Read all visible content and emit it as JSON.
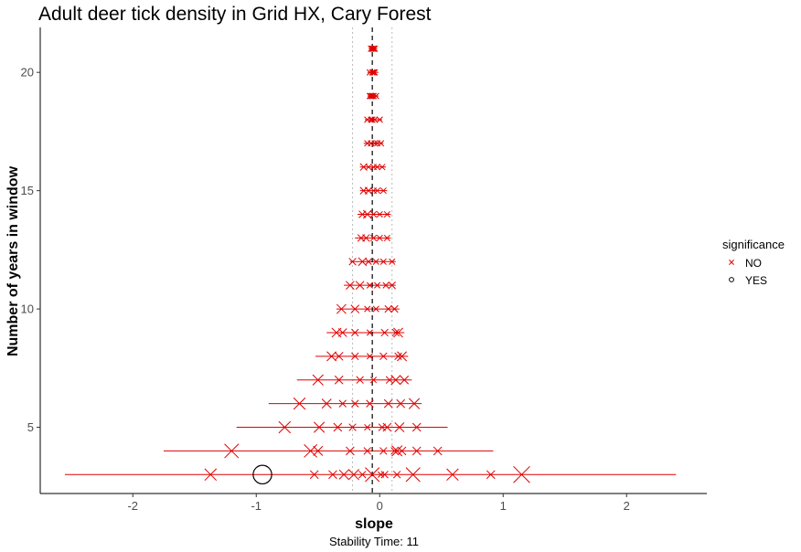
{
  "chart_data": {
    "type": "scatter",
    "title": "Adult deer tick density in Grid HX, Cary Forest",
    "xlabel": "slope",
    "ylabel": "Number of years in window",
    "caption": "Stability Time: 11",
    "xlim": [
      -2.75,
      2.65
    ],
    "ylim": [
      2.2,
      21.9
    ],
    "x_ticks": [
      -2,
      -1,
      0,
      1,
      2
    ],
    "x_tick_labels": [
      "-2",
      "-1",
      "0",
      "1",
      "2"
    ],
    "y_ticks": [
      5,
      10,
      15,
      20
    ],
    "y_tick_labels": [
      "5",
      "10",
      "15",
      "20"
    ],
    "reference_line_x": -0.06,
    "band_lines_x": [
      -0.22,
      0.1
    ],
    "grid": false,
    "colors": {
      "NO": "#e00000",
      "YES": "#000000",
      "ref_line": "#000000",
      "band": "#bbbbbb"
    },
    "legend": {
      "title": "significance",
      "position": "right",
      "entries": [
        {
          "label": "NO",
          "marker": "x",
          "color": "#e00000"
        },
        {
          "label": "YES",
          "marker": "circle",
          "color": "#000000"
        }
      ]
    },
    "rows": [
      {
        "n": 21,
        "min": -0.09,
        "max": -0.02,
        "points": [
          [
            -0.07,
            1
          ],
          [
            -0.05,
            1
          ],
          [
            -0.04,
            1
          ],
          [
            -0.06,
            1
          ]
        ]
      },
      {
        "n": 20,
        "min": -0.1,
        "max": -0.01,
        "points": [
          [
            -0.08,
            1
          ],
          [
            -0.06,
            1
          ],
          [
            -0.04,
            1
          ],
          [
            -0.05,
            1
          ]
        ]
      },
      {
        "n": 19,
        "min": -0.1,
        "max": -0.01,
        "points": [
          [
            -0.08,
            1
          ],
          [
            -0.06,
            1
          ],
          [
            -0.03,
            1
          ],
          [
            -0.05,
            1
          ],
          [
            -0.07,
            1
          ]
        ]
      },
      {
        "n": 18,
        "min": -0.12,
        "max": 0.02,
        "points": [
          [
            -0.1,
            1
          ],
          [
            -0.07,
            1
          ],
          [
            -0.04,
            1
          ],
          [
            -0.06,
            1
          ],
          [
            0,
            1
          ]
        ]
      },
      {
        "n": 17,
        "min": -0.13,
        "max": 0.03,
        "points": [
          [
            -0.1,
            1
          ],
          [
            -0.07,
            1
          ],
          [
            -0.04,
            1
          ],
          [
            -0.02,
            1
          ],
          [
            0.01,
            1
          ]
        ]
      },
      {
        "n": 16,
        "min": -0.16,
        "max": 0.05,
        "points": [
          [
            -0.13,
            1.2
          ],
          [
            -0.09,
            1
          ],
          [
            -0.05,
            1
          ],
          [
            -0.02,
            1
          ],
          [
            0.02,
            1
          ]
        ]
      },
      {
        "n": 15,
        "min": -0.16,
        "max": 0.06,
        "points": [
          [
            -0.13,
            1.2
          ],
          [
            -0.09,
            1.2
          ],
          [
            -0.05,
            1
          ],
          [
            -0.02,
            1
          ],
          [
            0.03,
            1
          ]
        ]
      },
      {
        "n": 14,
        "min": -0.18,
        "max": 0.09,
        "points": [
          [
            -0.14,
            1.2
          ],
          [
            -0.1,
            1.4
          ],
          [
            -0.05,
            1
          ],
          [
            0,
            1
          ],
          [
            0.06,
            1
          ]
        ]
      },
      {
        "n": 13,
        "min": -0.2,
        "max": 0.09,
        "points": [
          [
            -0.15,
            1.2
          ],
          [
            -0.11,
            1.2
          ],
          [
            -0.05,
            1
          ],
          [
            0,
            1
          ],
          [
            0.06,
            1
          ]
        ]
      },
      {
        "n": 12,
        "min": -0.24,
        "max": 0.13,
        "points": [
          [
            -0.22,
            1.2
          ],
          [
            -0.14,
            1.4
          ],
          [
            -0.09,
            1
          ],
          [
            -0.03,
            1
          ],
          [
            0.03,
            1
          ],
          [
            0.1,
            1
          ]
        ]
      },
      {
        "n": 11,
        "min": -0.29,
        "max": 0.13,
        "points": [
          [
            -0.24,
            1.4
          ],
          [
            -0.16,
            1.4
          ],
          [
            -0.08,
            1
          ],
          [
            -0.02,
            1
          ],
          [
            0.05,
            1
          ],
          [
            0.1,
            1.2
          ]
        ]
      },
      {
        "n": 10,
        "min": -0.35,
        "max": 0.16,
        "points": [
          [
            -0.31,
            1.6
          ],
          [
            -0.2,
            1.4
          ],
          [
            -0.1,
            1
          ],
          [
            -0.03,
            1
          ],
          [
            0.07,
            1.2
          ],
          [
            0.12,
            1.2
          ]
        ]
      },
      {
        "n": 9,
        "min": -0.43,
        "max": 0.2,
        "points": [
          [
            -0.35,
            1.6
          ],
          [
            -0.3,
            1.4
          ],
          [
            -0.2,
            1.2
          ],
          [
            -0.08,
            1
          ],
          [
            0.04,
            1.2
          ],
          [
            0.13,
            1.2
          ],
          [
            0.15,
            1.6
          ]
        ]
      },
      {
        "n": 8,
        "min": -0.52,
        "max": 0.23,
        "points": [
          [
            -0.39,
            1.6
          ],
          [
            -0.33,
            1.4
          ],
          [
            -0.2,
            1.2
          ],
          [
            -0.08,
            1
          ],
          [
            0.03,
            1.2
          ],
          [
            0.15,
            1.2
          ],
          [
            0.18,
            1.6
          ]
        ]
      },
      {
        "n": 7,
        "min": -0.67,
        "max": 0.26,
        "points": [
          [
            -0.5,
            1.8
          ],
          [
            -0.33,
            1.4
          ],
          [
            -0.16,
            1.2
          ],
          [
            -0.05,
            1
          ],
          [
            0.08,
            1.2
          ],
          [
            0.13,
            1.6
          ],
          [
            0.2,
            1.4
          ]
        ]
      },
      {
        "n": 6,
        "min": -0.9,
        "max": 0.34,
        "points": [
          [
            -0.65,
            2
          ],
          [
            -0.43,
            1.6
          ],
          [
            -0.3,
            1.2
          ],
          [
            -0.2,
            1.2
          ],
          [
            -0.08,
            1.2
          ],
          [
            0.07,
            1.4
          ],
          [
            0.17,
            1.4
          ],
          [
            0.28,
            1.8
          ]
        ]
      },
      {
        "n": 5,
        "min": -1.16,
        "max": 0.55,
        "points": [
          [
            -0.77,
            2
          ],
          [
            -0.49,
            1.8
          ],
          [
            -0.34,
            1.4
          ],
          [
            -0.22,
            1.2
          ],
          [
            -0.1,
            1
          ],
          [
            0.02,
            1.2
          ],
          [
            0.16,
            1.6
          ],
          [
            0.3,
            1.4
          ],
          [
            0.06,
            1.4
          ]
        ]
      },
      {
        "n": 4,
        "min": -1.75,
        "max": 0.92,
        "points": [
          [
            -1.2,
            2.4
          ],
          [
            -0.56,
            2.2
          ],
          [
            -0.5,
            1.6
          ],
          [
            -0.24,
            1.4
          ],
          [
            -0.1,
            1.2
          ],
          [
            0.03,
            1.2
          ],
          [
            0.14,
            1.8
          ],
          [
            0.18,
            1.4
          ],
          [
            0.3,
            1.4
          ],
          [
            0.47,
            1.4
          ],
          [
            0.12,
            1.2
          ]
        ]
      },
      {
        "n": 3,
        "min": -2.55,
        "max": 2.4,
        "points": [
          [
            -1.37,
            2
          ],
          [
            -0.53,
            1.4
          ],
          [
            -0.38,
            1.4
          ],
          [
            -0.29,
            1.6
          ],
          [
            -0.21,
            1.8
          ],
          [
            -0.06,
            2.4
          ],
          [
            0.04,
            1.2
          ],
          [
            0.14,
            1.2
          ],
          [
            0.27,
            2.4
          ],
          [
            0.59,
            2
          ],
          [
            0.9,
            1.4
          ],
          [
            1.15,
            2.8
          ],
          [
            -0.14,
            1.2
          ],
          [
            0.01,
            1
          ]
        ]
      }
    ],
    "significant_points": [
      {
        "n": 3,
        "x": -0.95,
        "size": 2.6
      }
    ]
  }
}
